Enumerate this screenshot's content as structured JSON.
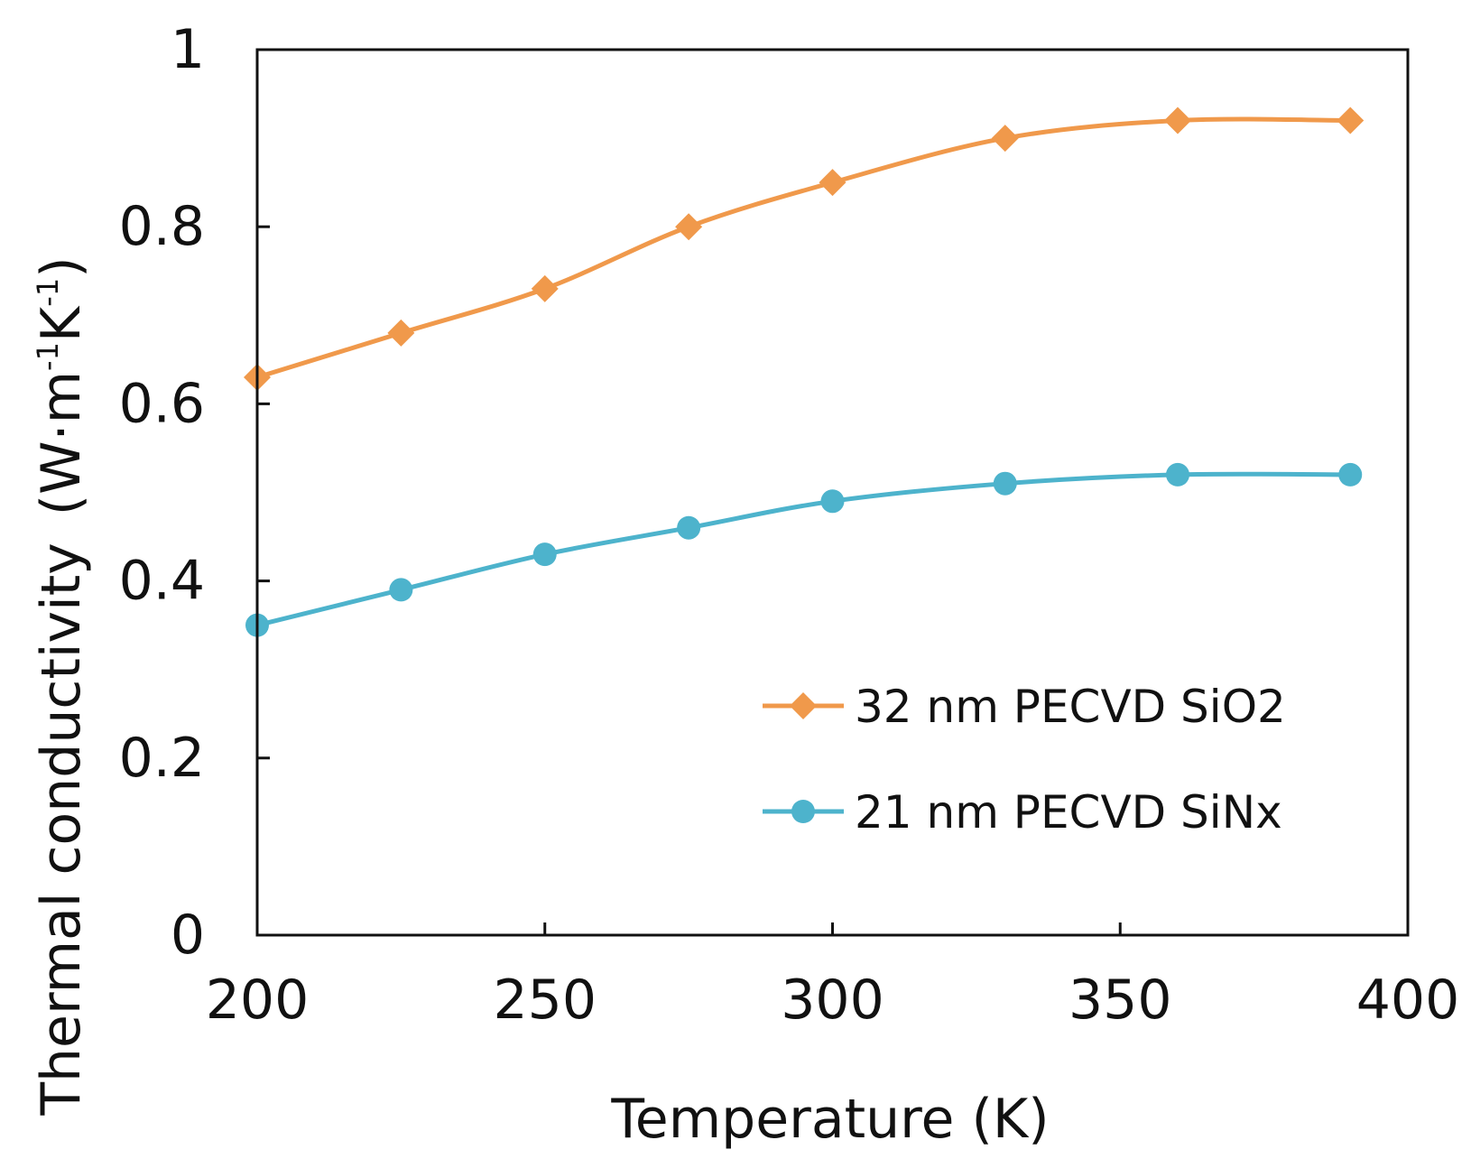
{
  "chart_data": {
    "type": "line",
    "title": "",
    "xlabel": "Temperature (K)",
    "ylabel": {
      "main": "Thermal conductivity",
      "unit_prefix": "(W·m",
      "unit_exp1": "-1",
      "unit_mid": "K",
      "unit_exp2": "-1",
      "unit_suffix": ")"
    },
    "xlim": [
      200,
      400
    ],
    "ylim": [
      0,
      1
    ],
    "xticks": [
      "200",
      "250",
      "300",
      "350",
      "400"
    ],
    "yticks": [
      "0",
      "0.2",
      "0.4",
      "0.6",
      "0.8",
      "1"
    ],
    "xtick_values": [
      200,
      250,
      300,
      350,
      400
    ],
    "ytick_values": [
      0,
      0.2,
      0.4,
      0.6,
      0.8,
      1
    ],
    "legend_position": "bottom-right",
    "series": [
      {
        "name": "32 nm PECVD SiO2",
        "color": "#f0994b",
        "marker": "diamond",
        "x": [
          200,
          225,
          250,
          275,
          300,
          330,
          360,
          390
        ],
        "y": [
          0.63,
          0.68,
          0.73,
          0.8,
          0.85,
          0.9,
          0.92,
          0.92
        ]
      },
      {
        "name": "21 nm PECVD SiNx",
        "color": "#4db3cc",
        "marker": "circle",
        "x": [
          200,
          225,
          250,
          275,
          300,
          330,
          360,
          390
        ],
        "y": [
          0.35,
          0.39,
          0.43,
          0.46,
          0.49,
          0.51,
          0.52,
          0.52
        ]
      }
    ]
  }
}
